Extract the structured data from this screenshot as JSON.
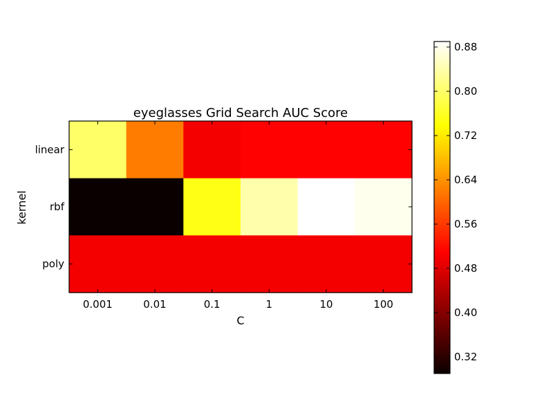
{
  "chart_data": {
    "type": "heatmap",
    "title": "eyeglasses Grid Search AUC Score",
    "xlabel": "C",
    "ylabel": "kernel",
    "x_categories": [
      "0.001",
      "0.01",
      "0.1",
      "1",
      "10",
      "100"
    ],
    "y_categories": [
      "linear",
      "rbf",
      "poly"
    ],
    "values": [
      [
        0.8,
        0.62,
        0.5,
        0.51,
        0.51,
        0.51
      ],
      [
        0.29,
        0.29,
        0.75,
        0.84,
        0.89,
        0.88
      ],
      [
        0.5,
        0.5,
        0.5,
        0.5,
        0.5,
        0.5
      ]
    ],
    "colormap": "hot",
    "colorbar": {
      "vmin": 0.29,
      "vmax": 0.89,
      "ticks": [
        0.32,
        0.4,
        0.48,
        0.56,
        0.64,
        0.72,
        0.8,
        0.88
      ],
      "tick_labels": [
        "0.32",
        "0.40",
        "0.48",
        "0.56",
        "0.64",
        "0.72",
        "0.80",
        "0.88"
      ]
    },
    "grid": false
  }
}
